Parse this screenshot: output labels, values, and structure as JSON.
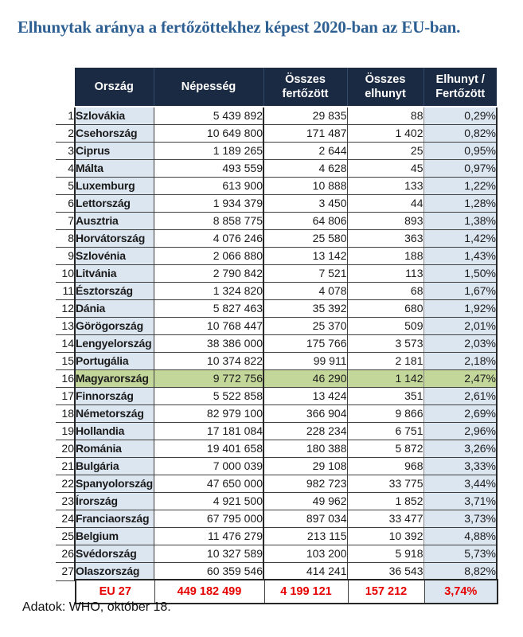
{
  "title": "Elhunytak aránya a fertőzöttekhez képest 2020-ban az EU-ban.",
  "colors": {
    "title_blue": "#2d5f92",
    "header_bg": "#1a2a42",
    "header_text": "#ffffff",
    "light_blue_cell": "#dce6f1",
    "highlight_green": "#c4d79b",
    "summary_red": "#e60000"
  },
  "table": {
    "headers": [
      "Ország",
      "Népesség",
      "Összes fertőzött",
      "Összes elhunyt",
      "Elhunyt / Fertőzött"
    ],
    "rows": [
      {
        "rank": "1",
        "country": "Szlovákia",
        "population": "5 439 892",
        "infected": "29 835",
        "deaths": "88",
        "ratio": "0,29%",
        "highlight": false
      },
      {
        "rank": "2",
        "country": "Csehország",
        "population": "10 649 800",
        "infected": "171 487",
        "deaths": "1 402",
        "ratio": "0,82%",
        "highlight": false
      },
      {
        "rank": "3",
        "country": "Ciprus",
        "population": "1 189 265",
        "infected": "2 644",
        "deaths": "25",
        "ratio": "0,95%",
        "highlight": false
      },
      {
        "rank": "4",
        "country": "Málta",
        "population": "493 559",
        "infected": "4 628",
        "deaths": "45",
        "ratio": "0,97%",
        "highlight": false
      },
      {
        "rank": "5",
        "country": "Luxemburg",
        "population": "613 900",
        "infected": "10 888",
        "deaths": "133",
        "ratio": "1,22%",
        "highlight": false
      },
      {
        "rank": "6",
        "country": "Lettország",
        "population": "1 934 379",
        "infected": "3 450",
        "deaths": "44",
        "ratio": "1,28%",
        "highlight": false
      },
      {
        "rank": "7",
        "country": "Ausztria",
        "population": "8 858 775",
        "infected": "64 806",
        "deaths": "893",
        "ratio": "1,38%",
        "highlight": false
      },
      {
        "rank": "8",
        "country": "Horvátország",
        "population": "4 076 246",
        "infected": "25 580",
        "deaths": "363",
        "ratio": "1,42%",
        "highlight": false
      },
      {
        "rank": "9",
        "country": "Szlovénia",
        "population": "2 066 880",
        "infected": "13 142",
        "deaths": "188",
        "ratio": "1,43%",
        "highlight": false
      },
      {
        "rank": "10",
        "country": "Litvánia",
        "population": "2 790 842",
        "infected": "7 521",
        "deaths": "113",
        "ratio": "1,50%",
        "highlight": false
      },
      {
        "rank": "11",
        "country": "Észtország",
        "population": "1 324 820",
        "infected": "4 078",
        "deaths": "68",
        "ratio": "1,67%",
        "highlight": false
      },
      {
        "rank": "12",
        "country": "Dánia",
        "population": "5 827 463",
        "infected": "35 392",
        "deaths": "680",
        "ratio": "1,92%",
        "highlight": false
      },
      {
        "rank": "13",
        "country": "Görögország",
        "population": "10 768 447",
        "infected": "25 370",
        "deaths": "509",
        "ratio": "2,01%",
        "highlight": false
      },
      {
        "rank": "14",
        "country": "Lengyelország",
        "population": "38 386 000",
        "infected": "175 766",
        "deaths": "3 573",
        "ratio": "2,03%",
        "highlight": false
      },
      {
        "rank": "15",
        "country": "Portugália",
        "population": "10 374 822",
        "infected": "99 911",
        "deaths": "2 181",
        "ratio": "2,18%",
        "highlight": false
      },
      {
        "rank": "16",
        "country": "Magyarország",
        "population": "9 772 756",
        "infected": "46 290",
        "deaths": "1 142",
        "ratio": "2,47%",
        "highlight": true
      },
      {
        "rank": "17",
        "country": "Finnország",
        "population": "5 522 858",
        "infected": "13 424",
        "deaths": "351",
        "ratio": "2,61%",
        "highlight": false
      },
      {
        "rank": "18",
        "country": "Németország",
        "population": "82 979 100",
        "infected": "366 904",
        "deaths": "9 866",
        "ratio": "2,69%",
        "highlight": false
      },
      {
        "rank": "19",
        "country": "Hollandia",
        "population": "17 181 084",
        "infected": "228 234",
        "deaths": "6 751",
        "ratio": "2,96%",
        "highlight": false
      },
      {
        "rank": "20",
        "country": "Románia",
        "population": "19 401 658",
        "infected": "180 388",
        "deaths": "5 872",
        "ratio": "3,26%",
        "highlight": false
      },
      {
        "rank": "21",
        "country": "Bulgária",
        "population": "7 000 039",
        "infected": "29 108",
        "deaths": "968",
        "ratio": "3,33%",
        "highlight": false
      },
      {
        "rank": "22",
        "country": "Spanyolország",
        "population": "47 650 000",
        "infected": "982 723",
        "deaths": "33 775",
        "ratio": "3,44%",
        "highlight": false
      },
      {
        "rank": "23",
        "country": "Írország",
        "population": "4 921 500",
        "infected": "49 962",
        "deaths": "1 852",
        "ratio": "3,71%",
        "highlight": false
      },
      {
        "rank": "24",
        "country": "Franciaország",
        "population": "67 795 000",
        "infected": "897 034",
        "deaths": "33 477",
        "ratio": "3,73%",
        "highlight": false
      },
      {
        "rank": "25",
        "country": "Belgium",
        "population": "11 476 279",
        "infected": "213 115",
        "deaths": "10 392",
        "ratio": "4,88%",
        "highlight": false
      },
      {
        "rank": "26",
        "country": "Svédország",
        "population": "10 327 589",
        "infected": "103 200",
        "deaths": "5 918",
        "ratio": "5,73%",
        "highlight": false
      },
      {
        "rank": "27",
        "country": "Olaszország",
        "population": "60 359 546",
        "infected": "414 241",
        "deaths": "36 543",
        "ratio": "8,82%",
        "highlight": false
      }
    ]
  },
  "summary": {
    "label": "EU 27",
    "population": "449 182 499",
    "infected": "4 199 121",
    "deaths": "157 212",
    "ratio": "3,74%"
  },
  "source_note": "Adatok: WHO, október 18."
}
